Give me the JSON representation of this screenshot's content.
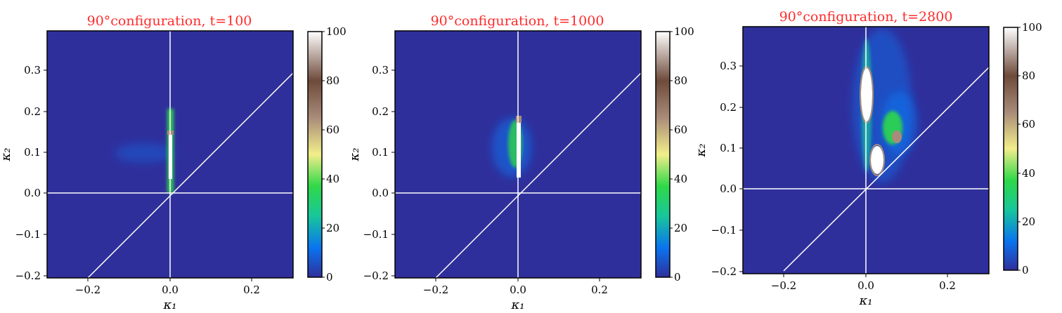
{
  "colors": {
    "background": "#2f2f9c",
    "title": "#ff2a2a",
    "guide_lines": "#ffffff",
    "colormap": [
      "#2f2f9c",
      "#0a74f0",
      "#18c79a",
      "#2fd848",
      "#f2ee8a",
      "#a98b7a",
      "#6e4a3a",
      "#ffffff"
    ]
  },
  "chart_data": [
    {
      "type": "heatmap",
      "title": "90°configuration, t=100",
      "xlabel": "κ₁",
      "ylabel": "κ₂",
      "xlim": [
        -0.3,
        0.3
      ],
      "ylim": [
        -0.2,
        0.39
      ],
      "x_ticks": [
        -0.2,
        0.0,
        0.2
      ],
      "x_tick_labels": [
        "−0.2",
        "0.0",
        "0.2"
      ],
      "y_ticks": [
        -0.2,
        -0.1,
        0.0,
        0.1,
        0.2,
        0.3
      ],
      "y_tick_labels": [
        "−0.2",
        "−0.1",
        "0.0",
        "0.1",
        "0.2",
        "0.3"
      ],
      "colorbar": {
        "range": [
          0,
          100
        ],
        "ticks": [
          0,
          20,
          40,
          60,
          80,
          100
        ],
        "tick_labels": [
          "0",
          "20",
          "40",
          "60",
          "80",
          "100"
        ]
      },
      "reference_lines": [
        "κ₁ = 0",
        "κ₂ = 0",
        "κ₂ = κ₁"
      ],
      "density_features": [
        {
          "x0": -0.001,
          "x1": 0.001,
          "y0": 0.03,
          "y1": 0.14,
          "value": 100
        },
        {
          "x0": -0.003,
          "x1": 0.003,
          "y0": 0.02,
          "y1": 0.21,
          "value": 25
        },
        {
          "x0": -0.02,
          "x1": 0.005,
          "y0": 0.05,
          "y1": 0.14,
          "value": 6
        },
        {
          "x0": -0.1,
          "x1": -0.02,
          "y0": 0.08,
          "y1": 0.12,
          "value": 2
        }
      ]
    },
    {
      "type": "heatmap",
      "title": "90°configuration, t=1000",
      "xlabel": "κ₁",
      "ylabel": "κ₂",
      "xlim": [
        -0.3,
        0.3
      ],
      "ylim": [
        -0.2,
        0.39
      ],
      "x_ticks": [
        -0.2,
        0.0,
        0.2
      ],
      "x_tick_labels": [
        "−0.2",
        "0.0",
        "0.2"
      ],
      "y_ticks": [
        -0.2,
        -0.1,
        0.0,
        0.1,
        0.2,
        0.3
      ],
      "y_tick_labels": [
        "−0.2",
        "−0.1",
        "0.0",
        "0.1",
        "0.2",
        "0.3"
      ],
      "colorbar": {
        "range": [
          0,
          100
        ],
        "ticks": [
          0,
          20,
          40,
          60,
          80,
          100
        ],
        "tick_labels": [
          "0",
          "20",
          "40",
          "60",
          "80",
          "100"
        ]
      },
      "reference_lines": [
        "κ₁ = 0",
        "κ₂ = 0",
        "κ₂ = κ₁"
      ],
      "density_features": [
        {
          "x0": -0.001,
          "x1": 0.003,
          "y0": 0.04,
          "y1": 0.17,
          "value": 100
        },
        {
          "x0": -0.003,
          "x1": 0.005,
          "y0": 0.03,
          "y1": 0.19,
          "value": 35
        },
        {
          "x0": -0.03,
          "x1": 0.015,
          "y0": 0.05,
          "y1": 0.15,
          "value": 15
        },
        {
          "x0": -0.05,
          "x1": 0.05,
          "y0": 0.04,
          "y1": 0.16,
          "value": 5
        }
      ]
    },
    {
      "type": "heatmap",
      "title": "90°configuration, t=2800",
      "xlabel": "κ₁",
      "ylabel": "κ₂",
      "xlim": [
        -0.3,
        0.3
      ],
      "ylim": [
        -0.2,
        0.39
      ],
      "x_ticks": [
        -0.2,
        0.0,
        0.2
      ],
      "x_tick_labels": [
        "−0.2",
        "0.0",
        "0.2"
      ],
      "y_ticks": [
        -0.2,
        -0.1,
        0.0,
        0.1,
        0.2,
        0.3
      ],
      "y_tick_labels": [
        "−0.2",
        "−0.1",
        "0.0",
        "0.1",
        "0.2",
        "0.3"
      ],
      "colorbar": {
        "range": [
          0,
          100
        ],
        "ticks": [
          0,
          20,
          40,
          60,
          80,
          100
        ],
        "tick_labels": [
          "0",
          "20",
          "40",
          "60",
          "80",
          "100"
        ]
      },
      "reference_lines": [
        "κ₁ = 0",
        "κ₂ = 0",
        "κ₂ = κ₁"
      ],
      "density_features": [
        {
          "x0": -0.03,
          "x1": 0.08,
          "y0": 0.04,
          "y1": 0.39,
          "value": 6
        },
        {
          "x0": -0.005,
          "x1": 0.01,
          "y0": 0.04,
          "y1": 0.34,
          "value": 30
        },
        {
          "x0": -0.008,
          "x1": 0.012,
          "y0": 0.18,
          "y1": 0.29,
          "value": 100
        },
        {
          "x0": 0.04,
          "x1": 0.1,
          "y0": 0.1,
          "y1": 0.17,
          "value": 50
        },
        {
          "x0": 0.06,
          "x1": 0.1,
          "y0": 0.1,
          "y1": 0.13,
          "value": 90
        },
        {
          "x0": 0.01,
          "x1": 0.04,
          "y0": 0.04,
          "y1": 0.11,
          "value": 100
        }
      ]
    }
  ]
}
